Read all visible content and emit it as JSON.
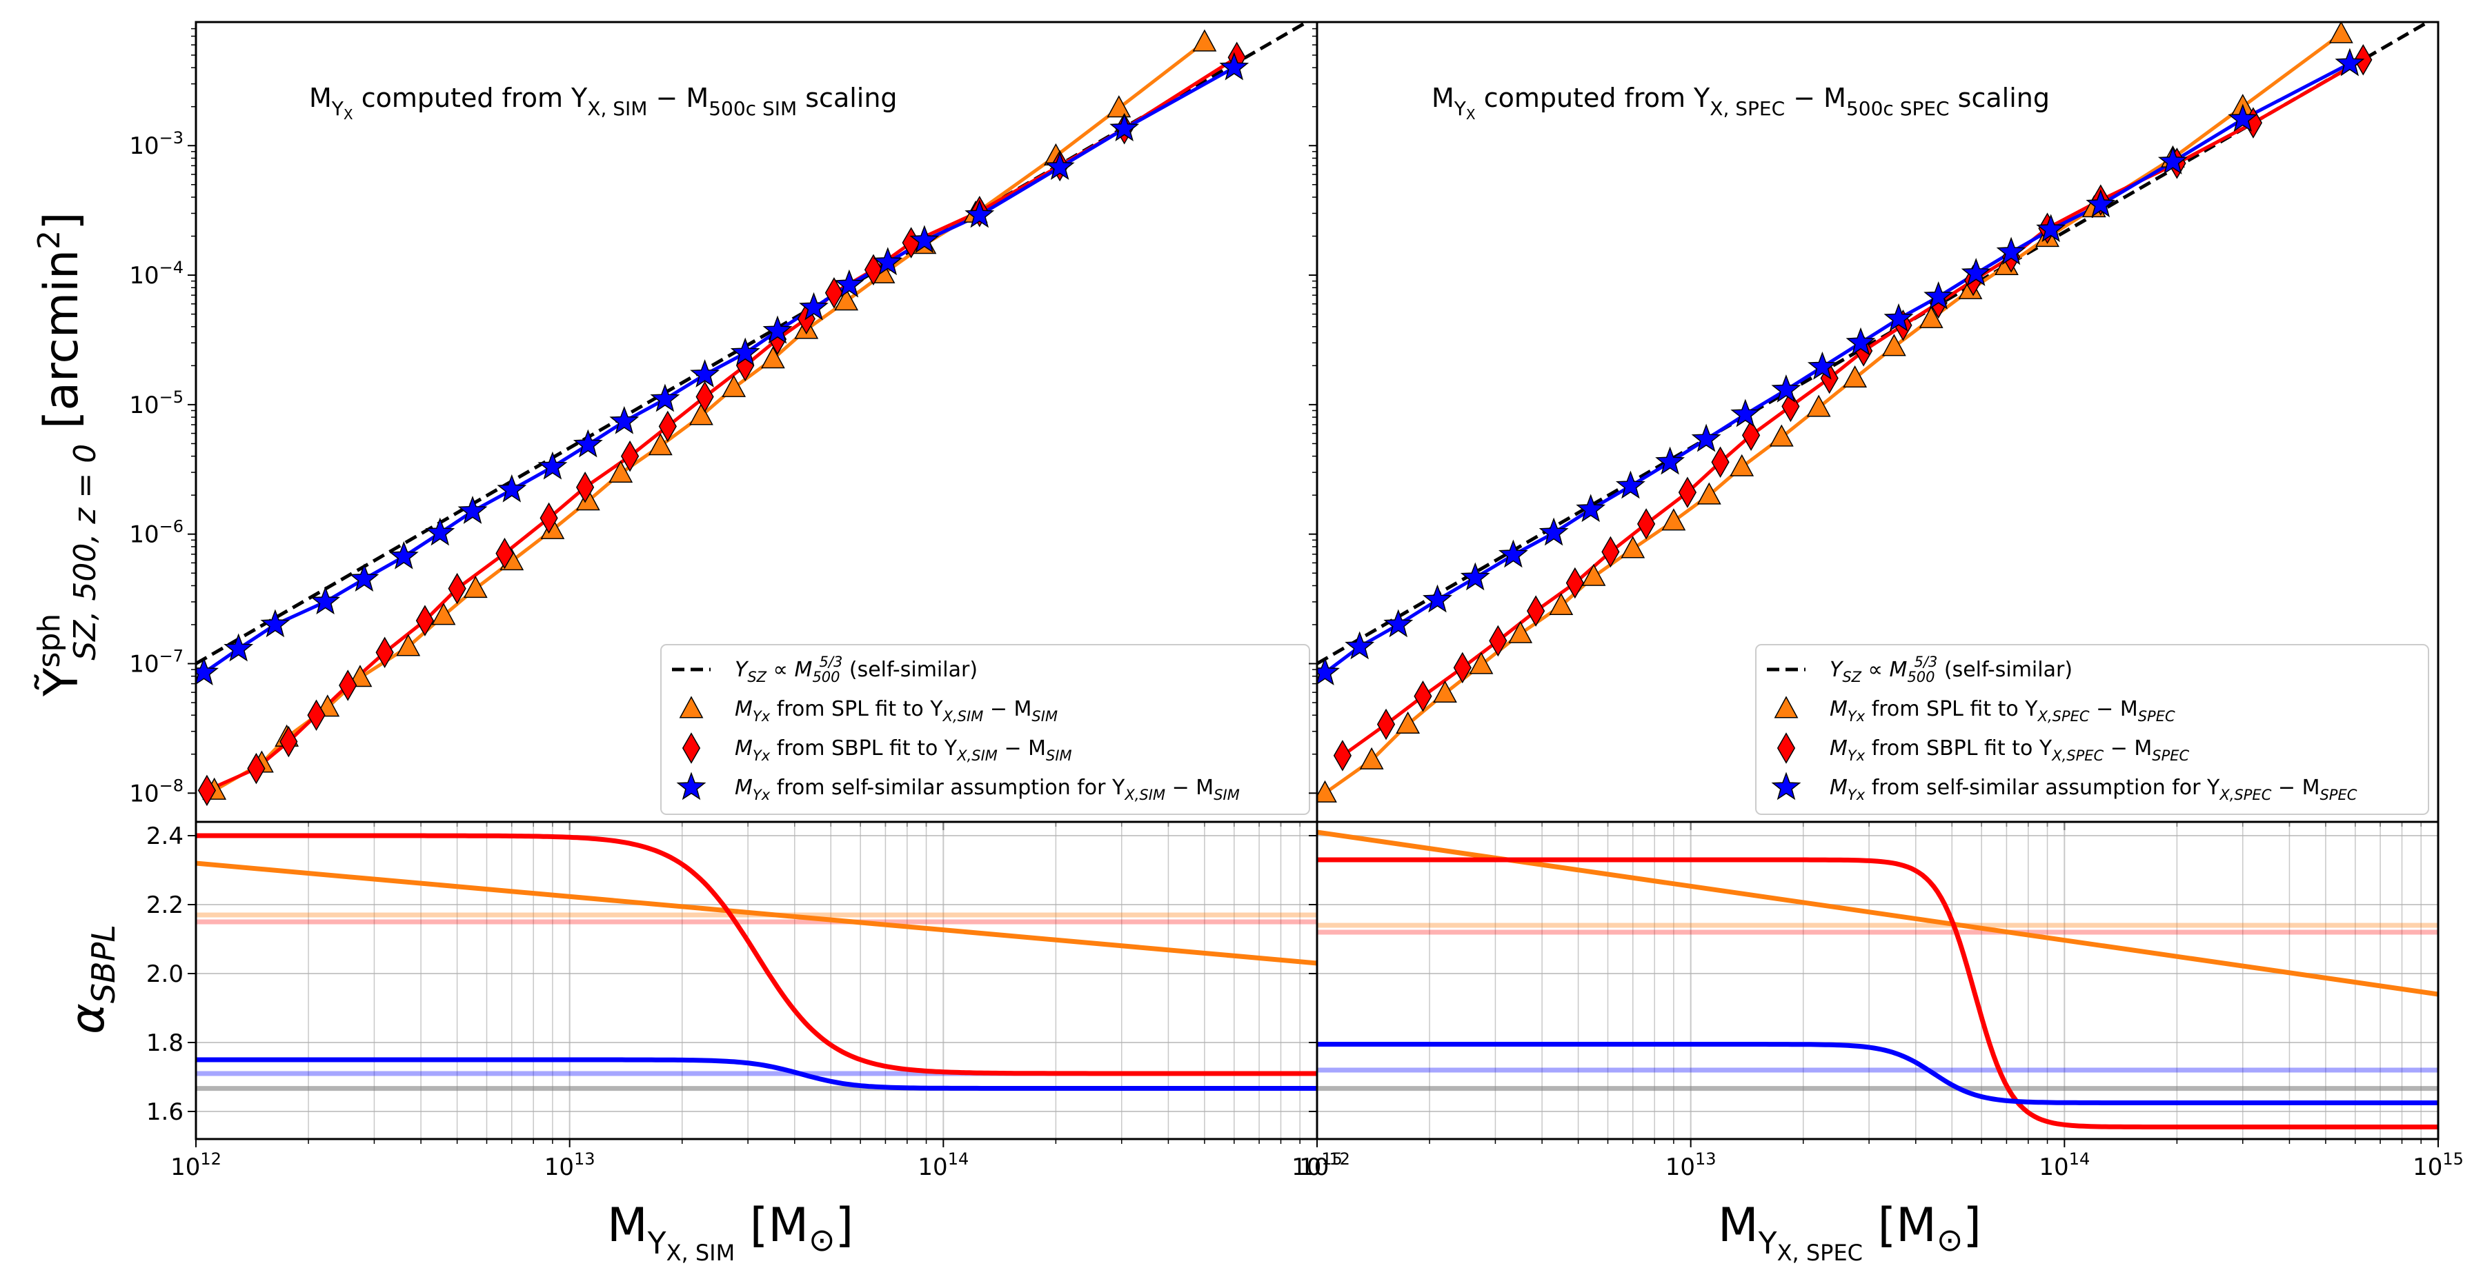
{
  "chart_data": [
    {
      "type": "line",
      "panel": "top-left",
      "annotation": "M_Yx computed from Y_X,SIM − M_500c SIM scaling",
      "annotation_parts": {
        "a": "M",
        "a_sub": "Y",
        "a_subsub": "X",
        "b": " computed from Y",
        "b_sub": "X, SIM",
        "c": " − M",
        "c_sub": "500c SIM",
        "d": " scaling"
      },
      "xlim": [
        1000000000000.0,
        1000000000000000.0
      ],
      "ylim": [
        6e-09,
        0.009
      ],
      "xscale": "log",
      "yscale": "log",
      "ylabel": "Ỹ^sph_SZ,500,z=0 [arcmin²]",
      "legend_position": "lower right",
      "legend": [
        {
          "label": "Y_SZ ∝ M_500^5/3 (self-similar)",
          "t1": "Y",
          "t1s": "SZ",
          "t2": " ∝ M",
          "t2s": "500",
          "t2p": "5/3",
          "t3": " (self-similar)"
        },
        {
          "label": "M_Yx from SPL fit to Y_X,SIM − M_SIM",
          "t1": "M",
          "t1s": "Yx",
          "t2": " from SPL fit to Y",
          "t2s": "X,SIM",
          "t3": " − M",
          "t3s": "SIM"
        },
        {
          "label": "M_Yx from SBPL fit to Y_X,SIM − M_SIM",
          "t1": "M",
          "t1s": "Yx",
          "t2": " from SBPL fit to Y",
          "t2s": "X,SIM",
          "t3": " − M",
          "t3s": "SIM"
        },
        {
          "label": "M_Yx from self-similar assumption for Y_X,SIM − M_SIM",
          "t1": "M",
          "t1s": "Yx",
          "t2": " from self-similar assumption for Y",
          "t2s": "X,SIM",
          "t3": " − M",
          "t3s": "SIM"
        }
      ],
      "self_similar": {
        "name": "self-similar",
        "x": [
          1000000000000.0,
          1000000000000000.0
        ],
        "y": [
          1e-07,
          0.01
        ],
        "color": "#000000"
      },
      "series": [
        {
          "name": "SPL",
          "color": "#ff7f0e",
          "marker": "triangle",
          "x": [
            1120000000000.0,
            1500000000000.0,
            1750000000000.0,
            2250000000000.0,
            2750000000000.0,
            3700000000000.0,
            4600000000000.0,
            5600000000000.0,
            7000000000000.0,
            9000000000000.0,
            11200000000000.0,
            13700000000000.0,
            17500000000000.0,
            22500000000000.0,
            27500000000000.0,
            35000000000000.0,
            43000000000000.0,
            55000000000000.0,
            69000000000000.0,
            89000000000000.0,
            122000000000000.0,
            200000000000000.0,
            295000000000000.0,
            500000000000000.0
          ],
          "y": [
            1.05e-08,
            1.7e-08,
            2.7e-08,
            4.6e-08,
            7.8e-08,
            1.35e-07,
            2.35e-07,
            3.8e-07,
            6.2e-07,
            1.08e-06,
            1.8e-06,
            2.95e-06,
            4.8e-06,
            8.2e-06,
            1.35e-05,
            2.25e-05,
            3.8e-05,
            6.3e-05,
            0.000102,
            0.000172,
            0.0003,
            0.00083,
            0.00195,
            0.0063
          ]
        },
        {
          "name": "SBPL",
          "color": "#ff0000",
          "marker": "diamond",
          "x": [
            1070000000000.0,
            1450000000000.0,
            1770000000000.0,
            2100000000000.0,
            2550000000000.0,
            3200000000000.0,
            4100000000000.0,
            5000000000000.0,
            6700000000000.0,
            8800000000000.0,
            11000000000000.0,
            14500000000000.0,
            18300000000000.0,
            23000000000000.0,
            29500000000000.0,
            36000000000000.0,
            43000000000000.0,
            51000000000000.0,
            65000000000000.0,
            82000000000000.0,
            125000000000000.0,
            205000000000000.0,
            305000000000000.0,
            610000000000000.0
          ],
          "y": [
            1.05e-08,
            1.55e-08,
            2.5e-08,
            4e-08,
            6.8e-08,
            1.22e-07,
            2.15e-07,
            3.8e-07,
            7.1e-07,
            1.33e-06,
            2.3e-06,
            4e-06,
            6.8e-06,
            1.15e-05,
            2e-05,
            3.2e-05,
            4.6e-05,
            7.3e-05,
            0.00011,
            0.000178,
            0.00031,
            0.0007,
            0.00135,
            0.0048
          ]
        },
        {
          "name": "self-similar assumption",
          "color": "#0000ff",
          "marker": "star",
          "x": [
            1050000000000.0,
            1300000000000.0,
            1630000000000.0,
            2220000000000.0,
            2820000000000.0,
            3600000000000.0,
            4500000000000.0,
            5500000000000.0,
            7000000000000.0,
            9000000000000.0,
            11200000000000.0,
            14000000000000.0,
            18000000000000.0,
            23000000000000.0,
            29500000000000.0,
            36000000000000.0,
            45000000000000.0,
            56000000000000.0,
            71000000000000.0,
            89000000000000.0,
            125000000000000.0,
            205000000000000.0,
            305000000000000.0,
            600000000000000.0
          ],
          "y": [
            8.5e-08,
            1.3e-07,
            2e-07,
            3e-07,
            4.5e-07,
            6.7e-07,
            1.02e-06,
            1.5e-06,
            2.2e-06,
            3.3e-06,
            4.9e-06,
            7.4e-06,
            1.1e-05,
            1.7e-05,
            2.5e-05,
            3.7e-05,
            5.6e-05,
            8.4e-05,
            0.000125,
            0.000185,
            0.00029,
            0.00068,
            0.00135,
            0.004
          ]
        }
      ]
    },
    {
      "type": "line",
      "panel": "top-right",
      "annotation": "M_Yx computed from Y_X,SPEC − M_500c SPEC scaling",
      "annotation_parts": {
        "a": "M",
        "a_sub": "Y",
        "a_subsub": "X",
        "b": " computed from Y",
        "b_sub": "X, SPEC",
        "c": " − M",
        "c_sub": "500c SPEC",
        "d": " scaling"
      },
      "xlim": [
        1000000000000.0,
        1000000000000000.0
      ],
      "ylim": [
        6e-09,
        0.009
      ],
      "xscale": "log",
      "yscale": "log",
      "legend_position": "lower right",
      "legend": [
        {
          "label": "Y_SZ ∝ M_500^5/3 (self-similar)",
          "t1": "Y",
          "t1s": "SZ",
          "t2": " ∝ M",
          "t2s": "500",
          "t2p": "5/3",
          "t3": " (self-similar)"
        },
        {
          "label": "M_Yx from SPL fit to Y_X,SPEC − M_SPEC",
          "t1": "M",
          "t1s": "Yx",
          "t2": " from SPL fit to Y",
          "t2s": "X,SPEC",
          "t3": " − M",
          "t3s": "SPEC"
        },
        {
          "label": "M_Yx from SBPL fit to Y_X,SPEC − M_SPEC",
          "t1": "M",
          "t1s": "Yx",
          "t2": " from SBPL fit to Y",
          "t2s": "X,SPEC",
          "t3": " − M",
          "t3s": "SPEC"
        },
        {
          "label": "M_Yx from self-similar assumption for Y_X,SPEC − M_SPEC",
          "t1": "M",
          "t1s": "Yx",
          "t2": " from self-similar assumption for Y",
          "t2s": "X,SPEC",
          "t3": " − M",
          "t3s": "SPEC"
        }
      ],
      "self_similar": {
        "name": "self-similar",
        "x": [
          1000000000000.0,
          1000000000000000.0
        ],
        "y": [
          1e-07,
          0.01
        ],
        "color": "#000000"
      },
      "series": [
        {
          "name": "SPL",
          "color": "#ff7f0e",
          "marker": "triangle",
          "x": [
            1050000000000.0,
            1400000000000.0,
            1750000000000.0,
            2200000000000.0,
            2750000000000.0,
            3500000000000.0,
            4500000000000.0,
            5500000000000.0,
            7000000000000.0,
            9000000000000.0,
            11200000000000.0,
            13700000000000.0,
            17500000000000.0,
            22000000000000.0,
            27500000000000.0,
            35000000000000.0,
            44000000000000.0,
            56000000000000.0,
            70000000000000.0,
            90000000000000.0,
            120000000000000.0,
            195000000000000.0,
            300000000000000.0,
            550000000000000.0
          ],
          "y": [
            1e-08,
            1.8e-08,
            3.4e-08,
            5.9e-08,
            9.8e-08,
            1.7e-07,
            2.8e-07,
            4.7e-07,
            7.7e-07,
            1.26e-06,
            2e-06,
            3.3e-06,
            5.6e-06,
            9.5e-06,
            1.6e-05,
            2.8e-05,
            4.6e-05,
            7.7e-05,
            0.000118,
            0.000195,
            0.00033,
            0.0008,
            0.002,
            0.0073
          ]
        },
        {
          "name": "SBPL",
          "color": "#ff0000",
          "marker": "diamond",
          "x": [
            1170000000000.0,
            1530000000000.0,
            1920000000000.0,
            2450000000000.0,
            3050000000000.0,
            3850000000000.0,
            4900000000000.0,
            6100000000000.0,
            7600000000000.0,
            9800000000000.0,
            12000000000000.0,
            14500000000000.0,
            18500000000000.0,
            23500000000000.0,
            29000000000000.0,
            37000000000000.0,
            46000000000000.0,
            57000000000000.0,
            72000000000000.0,
            90000000000000.0,
            125000000000000.0,
            200000000000000.0,
            320000000000000.0,
            630000000000000.0
          ],
          "y": [
            1.95e-08,
            3.4e-08,
            5.6e-08,
            9.3e-08,
            1.5e-07,
            2.55e-07,
            4.2e-07,
            7.3e-07,
            1.2e-06,
            2.1e-06,
            3.6e-06,
            5.8e-06,
            9.7e-06,
            1.6e-05,
            2.6e-05,
            4.1e-05,
            6.1e-05,
            9.1e-05,
            0.000138,
            0.00023,
            0.00038,
            0.00073,
            0.0015,
            0.0046
          ]
        },
        {
          "name": "self-similar assumption",
          "color": "#0000ff",
          "marker": "star",
          "x": [
            1050000000000.0,
            1300000000000.0,
            1650000000000.0,
            2100000000000.0,
            2650000000000.0,
            3350000000000.0,
            4300000000000.0,
            5400000000000.0,
            6900000000000.0,
            8800000000000.0,
            11000000000000.0,
            14000000000000.0,
            18000000000000.0,
            22500000000000.0,
            28500000000000.0,
            36000000000000.0,
            46000000000000.0,
            58000000000000.0,
            72000000000000.0,
            92000000000000.0,
            125000000000000.0,
            195000000000000.0,
            300000000000000.0,
            580000000000000.0
          ],
          "y": [
            8.5e-08,
            1.35e-07,
            2e-07,
            3.1e-07,
            4.6e-07,
            6.9e-07,
            1.02e-06,
            1.55e-06,
            2.35e-06,
            3.6e-06,
            5.4e-06,
            8.4e-06,
            1.3e-05,
            1.95e-05,
            3e-05,
            4.6e-05,
            6.8e-05,
            0.000103,
            0.00015,
            0.000225,
            0.00035,
            0.00075,
            0.0016,
            0.0043
          ]
        }
      ]
    },
    {
      "type": "line",
      "panel": "bottom-left",
      "xlim": [
        1000000000000.0,
        1000000000000000.0
      ],
      "ylim": [
        1.52,
        2.44
      ],
      "xscale": "log",
      "ylabel": "α_SBPL",
      "xlabel": "M_Yx,SIM [M_⊙]",
      "xlabel_parts": {
        "a": "M",
        "a_sub": "Y",
        "a_subsub": "X, SIM",
        "b": " [M",
        "b_sub": "⊙",
        "c": "]"
      },
      "hlines": [
        {
          "name": "self-similar reference",
          "y": 1.6667,
          "color": "#808080",
          "opacity": 0.6
        },
        {
          "name": "SPL faint",
          "y": 2.17,
          "color": "#ff7f0e",
          "opacity": 0.35
        },
        {
          "name": "SBPL faint",
          "y": 2.15,
          "color": "#ff0000",
          "opacity": 0.3
        },
        {
          "name": "self-similar faint",
          "y": 1.71,
          "color": "#0000ff",
          "opacity": 0.35
        }
      ],
      "series": [
        {
          "name": "SPL slope",
          "color": "#ff7f0e",
          "x": [
            1000000000000.0,
            1000000000000000.0
          ],
          "y": [
            2.32,
            2.03
          ]
        },
        {
          "name": "SBPL slope",
          "color": "#ff0000",
          "kind": "sigmoid",
          "a_low": 2.4,
          "a_high": 1.71,
          "log_xb": 13.5,
          "width": 0.1
        },
        {
          "name": "self-similar slope",
          "color": "#0000ff",
          "kind": "sigmoid",
          "a_low": 1.75,
          "a_high": 1.667,
          "log_xb": 13.62,
          "width": 0.07
        }
      ]
    },
    {
      "type": "line",
      "panel": "bottom-right",
      "xlim": [
        1000000000000.0,
        1000000000000000.0
      ],
      "ylim": [
        1.52,
        2.44
      ],
      "xscale": "log",
      "xlabel": "M_Yx,SPEC [M_⊙]",
      "xlabel_parts": {
        "a": "M",
        "a_sub": "Y",
        "a_subsub": "X, SPEC",
        "b": " [M",
        "b_sub": "⊙",
        "c": "]"
      },
      "hlines": [
        {
          "name": "self-similar reference",
          "y": 1.6667,
          "color": "#808080",
          "opacity": 0.6
        },
        {
          "name": "SPL faint",
          "y": 2.14,
          "color": "#ff7f0e",
          "opacity": 0.35
        },
        {
          "name": "SBPL faint",
          "y": 2.12,
          "color": "#ff0000",
          "opacity": 0.3
        },
        {
          "name": "self-similar faint",
          "y": 1.72,
          "color": "#0000ff",
          "opacity": 0.35
        }
      ],
      "series": [
        {
          "name": "SPL slope",
          "color": "#ff7f0e",
          "x": [
            1000000000000.0,
            1000000000000000.0
          ],
          "y": [
            2.41,
            1.94
          ]
        },
        {
          "name": "SBPL slope",
          "color": "#ff0000",
          "kind": "sigmoid",
          "a_low": 2.33,
          "a_high": 1.555,
          "log_xb": 13.76,
          "width": 0.05
        },
        {
          "name": "self-similar slope",
          "color": "#0000ff",
          "kind": "sigmoid",
          "a_low": 1.795,
          "a_high": 1.625,
          "log_xb": 13.65,
          "width": 0.06
        }
      ]
    }
  ],
  "axes": {
    "x_ticks": [
      {
        "base": "10",
        "exp": "12"
      },
      {
        "base": "10",
        "exp": "13"
      },
      {
        "base": "10",
        "exp": "14"
      },
      {
        "base": "10",
        "exp": "15"
      }
    ],
    "x_tick_overlap": {
      "base": "10",
      "exp": "12"
    },
    "top_y_ticks": [
      {
        "base": "10",
        "exp": "−3"
      },
      {
        "base": "10",
        "exp": "−4"
      },
      {
        "base": "10",
        "exp": "−5"
      },
      {
        "base": "10",
        "exp": "−6"
      },
      {
        "base": "10",
        "exp": "−7"
      },
      {
        "base": "10",
        "exp": "−8"
      }
    ],
    "bottom_y_ticks": [
      "2.4",
      "2.2",
      "2.0",
      "1.8",
      "1.6"
    ]
  },
  "top_ylabel_parts": {
    "a": "Ỹ",
    "sup": "sph",
    "sub": "SZ, 500, z = 0",
    "b": " [arcmin",
    "b_sup": "2",
    "c": "]"
  },
  "bottom_ylabel_parts": {
    "a": "α",
    "sub": "SBPL"
  }
}
